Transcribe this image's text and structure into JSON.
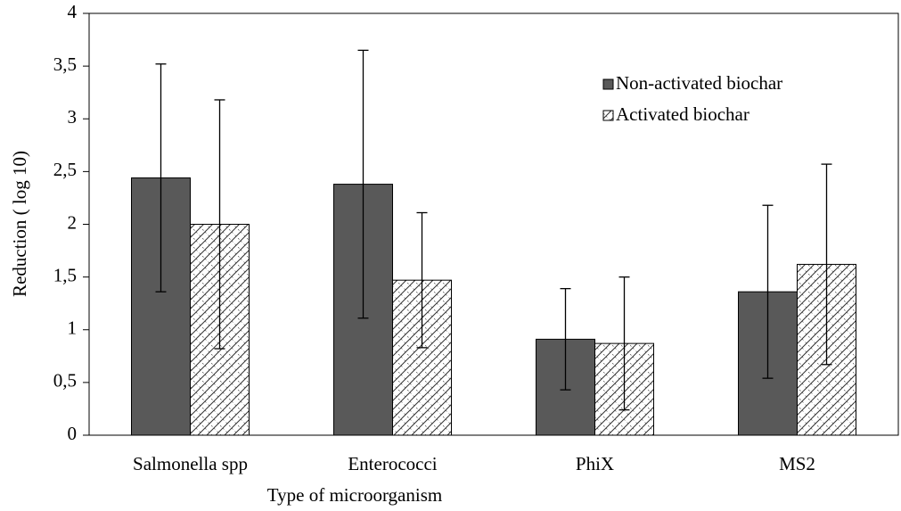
{
  "chart_data": {
    "type": "bar",
    "x_label": "Type of microorganism",
    "y_label": "Reduction ( log 10)",
    "categories": [
      "Salmonella spp",
      "Enterococci",
      "PhiX",
      "MS2"
    ],
    "series": [
      {
        "name": "Non-activated biochar",
        "color": "#595959",
        "values": [
          2.44,
          2.38,
          0.91,
          1.36
        ],
        "errors": [
          1.08,
          1.27,
          0.48,
          0.82
        ]
      },
      {
        "name": "Activated biochar",
        "color": "#ffffff",
        "hatch": "crosshatch",
        "values": [
          2.0,
          1.47,
          0.87,
          1.62
        ],
        "errors": [
          1.18,
          0.64,
          0.63,
          0.95
        ]
      }
    ],
    "ylim": [
      0,
      4
    ],
    "yticks": [
      0,
      {
        "value": 0.5,
        "label": "0,5"
      },
      1,
      {
        "value": 1.5,
        "label": "1,5"
      },
      2,
      {
        "value": 2.5,
        "label": "2,5"
      },
      3,
      {
        "value": 3.5,
        "label": "3,5"
      },
      4
    ],
    "grid": false,
    "legend": "upper right"
  }
}
